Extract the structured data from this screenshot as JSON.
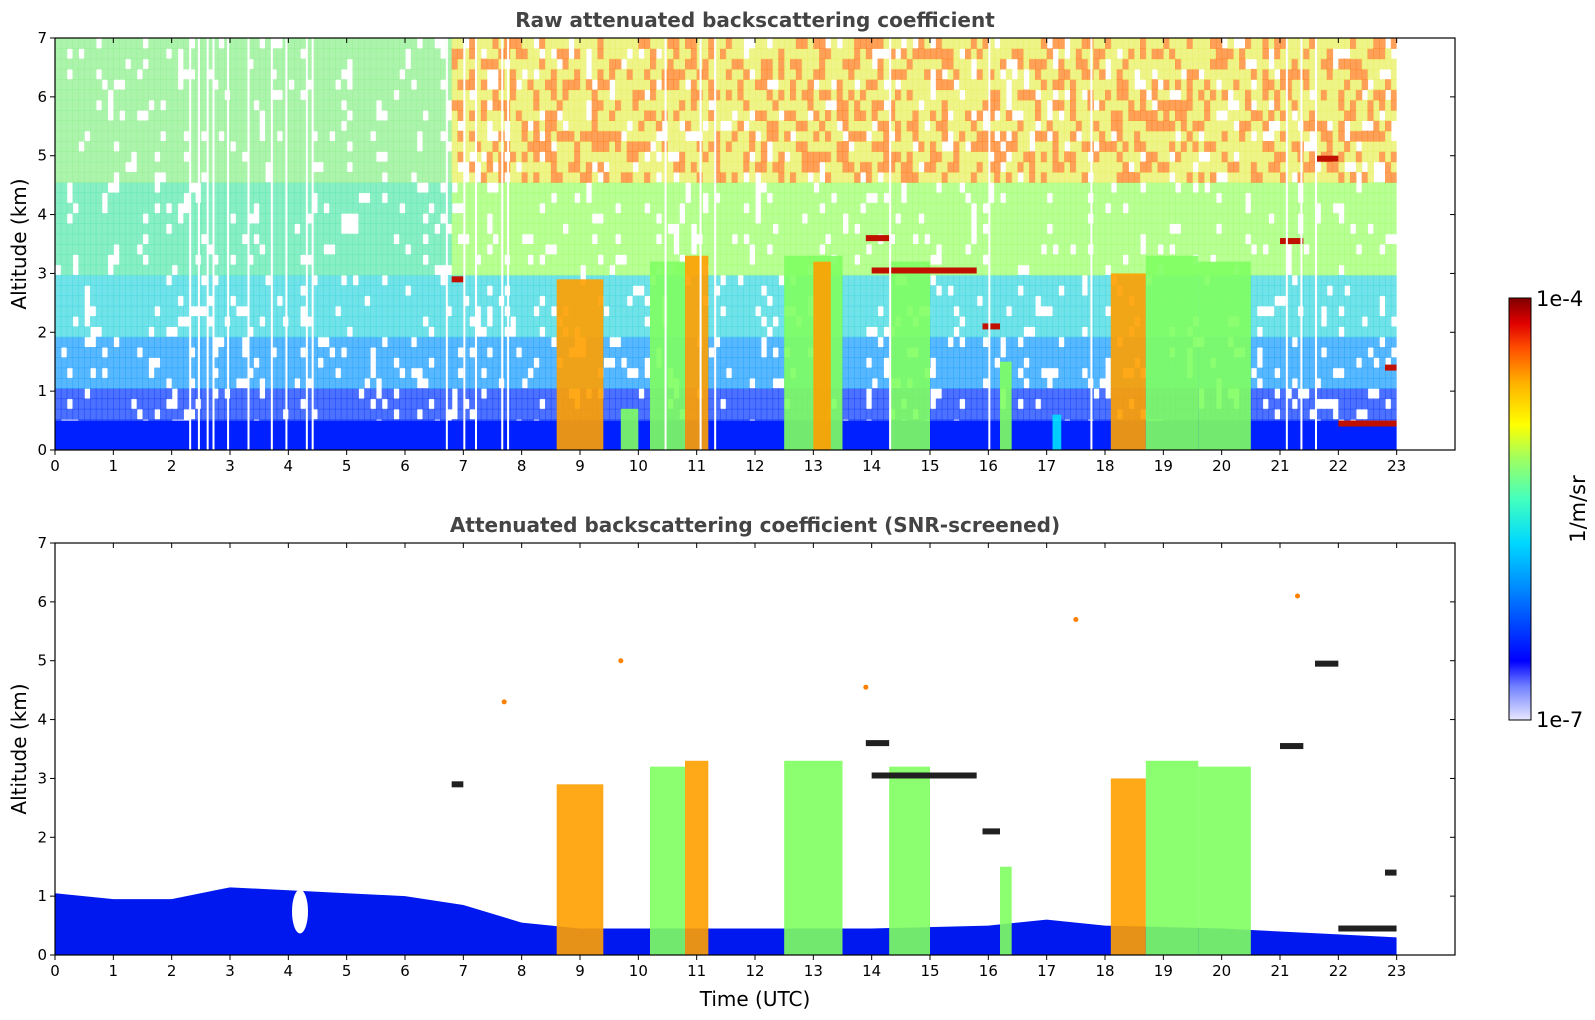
{
  "chart_data": [
    {
      "type": "heatmap",
      "title": "Raw attenuated backscattering coefficient",
      "xlabel": "",
      "ylabel": "Altitude (km)",
      "xlim": [
        0,
        24
      ],
      "ylim": [
        0,
        7
      ],
      "xticks": [
        "0",
        "1",
        "2",
        "3",
        "4",
        "5",
        "6",
        "7",
        "8",
        "9",
        "10",
        "11",
        "12",
        "13",
        "14",
        "15",
        "16",
        "17",
        "18",
        "19",
        "20",
        "21",
        "22",
        "23"
      ],
      "yticks": [
        "0",
        "1",
        "2",
        "3",
        "4",
        "5",
        "6",
        "7"
      ],
      "data_end_time": 23,
      "noise_start_time": 6.7,
      "background_layer_top_km": 0.5,
      "low_cloud_columns": [
        {
          "start": 8.6,
          "end": 9.4,
          "top_km": 2.9,
          "level": "high"
        },
        {
          "start": 9.7,
          "end": 10.0,
          "top_km": 0.7,
          "level": "mid"
        },
        {
          "start": 10.2,
          "end": 10.8,
          "top_km": 3.2,
          "level": "mid"
        },
        {
          "start": 10.8,
          "end": 11.2,
          "top_km": 3.3,
          "level": "high"
        },
        {
          "start": 12.5,
          "end": 13.5,
          "top_km": 3.3,
          "level": "mid"
        },
        {
          "start": 13.0,
          "end": 13.3,
          "top_km": 3.2,
          "level": "high"
        },
        {
          "start": 14.3,
          "end": 15.0,
          "top_km": 3.2,
          "level": "mid"
        },
        {
          "start": 16.2,
          "end": 16.4,
          "top_km": 1.5,
          "level": "mid"
        },
        {
          "start": 17.1,
          "end": 17.25,
          "top_km": 0.6,
          "level": "low"
        },
        {
          "start": 18.1,
          "end": 18.7,
          "top_km": 3.0,
          "level": "high"
        },
        {
          "start": 18.7,
          "end": 19.6,
          "top_km": 3.3,
          "level": "mid"
        },
        {
          "start": 19.6,
          "end": 20.5,
          "top_km": 3.2,
          "level": "mid"
        }
      ],
      "cloud_layers": [
        {
          "start": 6.8,
          "end": 7.0,
          "alt_km": 2.9
        },
        {
          "start": 13.9,
          "end": 14.3,
          "alt_km": 3.6
        },
        {
          "start": 14.0,
          "end": 15.8,
          "alt_km": 3.05
        },
        {
          "start": 15.9,
          "end": 16.2,
          "alt_km": 2.1
        },
        {
          "start": 21.0,
          "end": 21.4,
          "alt_km": 3.55
        },
        {
          "start": 21.6,
          "end": 22.0,
          "alt_km": 4.95
        },
        {
          "start": 22.8,
          "end": 23.0,
          "alt_km": 1.4
        },
        {
          "start": 22.0,
          "end": 23.0,
          "alt_km": 0.45
        }
      ],
      "data_gaps": [
        2.3,
        2.45,
        2.6,
        2.7,
        2.95,
        3.3,
        3.7,
        3.95,
        4.3,
        4.4,
        6.7,
        7.0,
        7.2,
        7.65,
        7.75,
        10.45,
        11.05,
        11.3,
        14.3,
        16.0,
        17.75,
        21.1,
        21.35,
        21.6
      ]
    },
    {
      "type": "heatmap",
      "title": "Attenuated backscattering coefficient (SNR-screened)",
      "xlabel": "Time (UTC)",
      "ylabel": "Altitude (km)",
      "xlim": [
        0,
        24
      ],
      "ylim": [
        0,
        7
      ],
      "xticks": [
        "0",
        "1",
        "2",
        "3",
        "4",
        "5",
        "6",
        "7",
        "8",
        "9",
        "10",
        "11",
        "12",
        "13",
        "14",
        "15",
        "16",
        "17",
        "18",
        "19",
        "20",
        "21",
        "22",
        "23"
      ],
      "yticks": [
        "0",
        "1",
        "2",
        "3",
        "4",
        "5",
        "6",
        "7"
      ],
      "data_end_time": 23,
      "boundary_layer_top_km": [
        [
          0,
          1.05
        ],
        [
          1,
          0.95
        ],
        [
          2,
          0.95
        ],
        [
          3,
          1.15
        ],
        [
          4,
          1.1
        ],
        [
          5,
          1.05
        ],
        [
          6,
          1.0
        ],
        [
          7,
          0.85
        ],
        [
          8,
          0.55
        ],
        [
          9,
          0.45
        ],
        [
          10,
          0.45
        ],
        [
          12,
          0.45
        ],
        [
          14,
          0.45
        ],
        [
          16,
          0.5
        ],
        [
          17,
          0.6
        ],
        [
          18,
          0.5
        ],
        [
          20,
          0.45
        ],
        [
          21,
          0.4
        ],
        [
          22,
          0.35
        ],
        [
          23,
          0.3
        ]
      ],
      "boundary_layer_dip": {
        "time": 4.2,
        "alt_km": 0.4
      },
      "low_cloud_columns": [
        {
          "start": 8.6,
          "end": 9.4,
          "top_km": 2.9,
          "level": "high"
        },
        {
          "start": 10.2,
          "end": 10.8,
          "top_km": 3.2,
          "level": "mid"
        },
        {
          "start": 10.8,
          "end": 11.2,
          "top_km": 3.3,
          "level": "high"
        },
        {
          "start": 12.5,
          "end": 13.5,
          "top_km": 3.3,
          "level": "mid"
        },
        {
          "start": 14.3,
          "end": 15.0,
          "top_km": 3.2,
          "level": "mid"
        },
        {
          "start": 16.2,
          "end": 16.4,
          "top_km": 1.5,
          "level": "mid"
        },
        {
          "start": 18.1,
          "end": 18.7,
          "top_km": 3.0,
          "level": "high"
        },
        {
          "start": 18.7,
          "end": 19.6,
          "top_km": 3.3,
          "level": "mid"
        },
        {
          "start": 19.6,
          "end": 20.5,
          "top_km": 3.2,
          "level": "mid"
        }
      ],
      "cloud_layers": [
        {
          "start": 6.8,
          "end": 7.0,
          "alt_km": 2.9
        },
        {
          "start": 13.9,
          "end": 14.3,
          "alt_km": 3.6
        },
        {
          "start": 14.0,
          "end": 15.8,
          "alt_km": 3.05
        },
        {
          "start": 15.9,
          "end": 16.2,
          "alt_km": 2.1
        },
        {
          "start": 21.0,
          "end": 21.4,
          "alt_km": 3.55
        },
        {
          "start": 21.6,
          "end": 22.0,
          "alt_km": 4.95
        },
        {
          "start": 22.8,
          "end": 23.0,
          "alt_km": 1.4
        },
        {
          "start": 22.0,
          "end": 23.0,
          "alt_km": 0.45
        }
      ],
      "isolated_echoes": [
        {
          "time": 21.3,
          "alt_km": 6.1
        },
        {
          "time": 9.7,
          "alt_km": 5.0
        },
        {
          "time": 13.9,
          "alt_km": 4.55
        },
        {
          "time": 17.5,
          "alt_km": 5.7
        },
        {
          "time": 7.7,
          "alt_km": 4.3
        }
      ]
    }
  ],
  "colorbar": {
    "label": "1/m/sr",
    "max_label": "1e-4",
    "min_label": "1e-7",
    "colors": [
      "#e8e8ff",
      "#c0c4ff",
      "#7080ff",
      "#0000ff",
      "#0040ff",
      "#0090ff",
      "#00d8ff",
      "#40ffc0",
      "#a0ff60",
      "#ffff00",
      "#ffb000",
      "#ff5000",
      "#e00000",
      "#800000"
    ]
  }
}
